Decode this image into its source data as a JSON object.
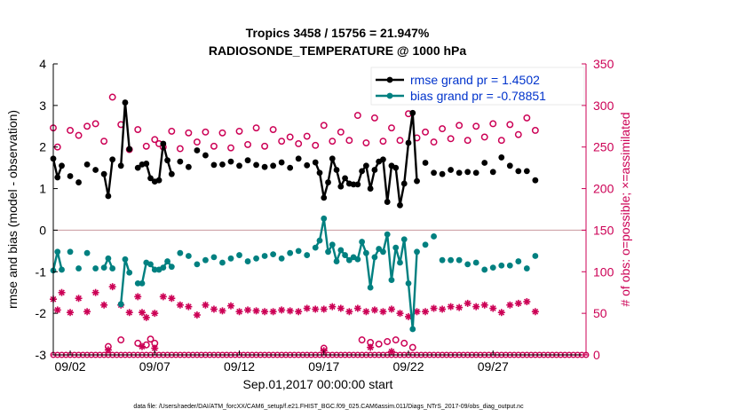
{
  "chart_data": {
    "type": "line",
    "title": "Tropics 3458 / 15756 = 21.947%",
    "subtitle": "RADIOSONDE_TEMPERATURE @ 1000 hPa",
    "xlabel": "Sep.01,2017 00:00:00 start",
    "ylabel_left": "rmse and bias (model - observation)",
    "ylabel_right": "# of obs: o=possible; ×=assimilated",
    "xlim": [
      1,
      32.5
    ],
    "ylim_left": [
      -3,
      4
    ],
    "ylim_right": [
      0,
      350
    ],
    "x_ticks": [
      2,
      7,
      12,
      17,
      22,
      27
    ],
    "x_tick_labels": [
      "09/02",
      "09/07",
      "09/12",
      "09/17",
      "09/22",
      "09/27"
    ],
    "y_left_ticks": [
      -3,
      -2,
      -1,
      0,
      1,
      2,
      3,
      4
    ],
    "y_right_ticks": [
      0,
      50,
      100,
      150,
      200,
      250,
      300,
      350
    ],
    "zero_line": 0,
    "colors": {
      "rmse": "#000000",
      "bias": "#008080",
      "obs": "#cc0055",
      "zero_line": "#cfa3a8",
      "legend_text": "#0033cc"
    },
    "series": [
      {
        "name": "rmse",
        "legend": "rmse grand pr = 1.4502",
        "values": [
          [
            1.0,
            1.72
          ],
          [
            1.25,
            1.27
          ],
          [
            1.5,
            1.55
          ],
          [
            2.0,
            1.3
          ],
          [
            2.5,
            1.15
          ],
          [
            3.0,
            1.58
          ],
          [
            3.5,
            1.45
          ],
          [
            4.0,
            1.35
          ],
          [
            4.25,
            0.82
          ],
          [
            4.5,
            1.7
          ],
          [
            5.0,
            1.55
          ],
          [
            5.25,
            3.07
          ],
          [
            5.5,
            1.95
          ],
          [
            6.0,
            1.5
          ],
          [
            6.25,
            1.58
          ],
          [
            6.5,
            1.6
          ],
          [
            6.75,
            1.25
          ],
          [
            7.0,
            1.17
          ],
          [
            7.25,
            1.2
          ],
          [
            7.5,
            2.08
          ],
          [
            7.75,
            1.68
          ],
          [
            8.0,
            1.35
          ],
          [
            8.5,
            1.65
          ],
          [
            9.0,
            1.52
          ],
          [
            9.5,
            1.92
          ],
          [
            10.0,
            1.8
          ],
          [
            10.5,
            1.57
          ],
          [
            11.0,
            1.58
          ],
          [
            11.5,
            1.65
          ],
          [
            12.0,
            1.55
          ],
          [
            12.5,
            1.68
          ],
          [
            13.0,
            1.57
          ],
          [
            13.5,
            1.52
          ],
          [
            14.0,
            1.55
          ],
          [
            14.5,
            1.63
          ],
          [
            15.0,
            1.5
          ],
          [
            15.5,
            1.72
          ],
          [
            16.0,
            1.56
          ],
          [
            16.5,
            1.63
          ],
          [
            16.75,
            1.38
          ],
          [
            17.0,
            0.78
          ],
          [
            17.25,
            1.15
          ],
          [
            17.5,
            1.72
          ],
          [
            17.75,
            1.45
          ],
          [
            18.0,
            1.05
          ],
          [
            18.25,
            1.25
          ],
          [
            18.5,
            1.12
          ],
          [
            18.75,
            1.1
          ],
          [
            19.0,
            1.1
          ],
          [
            19.25,
            1.42
          ],
          [
            19.5,
            1.55
          ],
          [
            19.75,
            1.0
          ],
          [
            20.0,
            1.45
          ],
          [
            20.25,
            1.65
          ],
          [
            20.5,
            1.7
          ],
          [
            20.75,
            0.68
          ],
          [
            21.0,
            1.55
          ],
          [
            21.25,
            1.5
          ],
          [
            21.5,
            0.6
          ],
          [
            21.75,
            1.12
          ],
          [
            22.0,
            2.1
          ],
          [
            22.25,
            2.82
          ],
          [
            22.5,
            1.18
          ],
          [
            23.0,
            1.62
          ],
          [
            23.5,
            1.38
          ],
          [
            24.0,
            1.35
          ],
          [
            24.5,
            1.45
          ],
          [
            25.0,
            1.38
          ],
          [
            25.5,
            1.4
          ],
          [
            26.0,
            1.38
          ],
          [
            26.5,
            1.62
          ],
          [
            27.0,
            1.4
          ],
          [
            27.5,
            1.75
          ],
          [
            28.0,
            1.55
          ],
          [
            28.5,
            1.42
          ],
          [
            29.0,
            1.42
          ],
          [
            29.5,
            1.2
          ]
        ]
      },
      {
        "name": "bias",
        "legend": "bias grand pr = -0.78851",
        "values": [
          [
            1.0,
            -0.97
          ],
          [
            1.25,
            -0.52
          ],
          [
            1.5,
            -0.95
          ],
          [
            2.0,
            -0.52
          ],
          [
            2.5,
            -0.92
          ],
          [
            3.0,
            -0.55
          ],
          [
            3.5,
            -0.92
          ],
          [
            4.0,
            -0.9
          ],
          [
            4.25,
            -0.68
          ],
          [
            4.5,
            -0.92
          ],
          [
            5.0,
            -1.78
          ],
          [
            5.25,
            -0.7
          ],
          [
            5.5,
            -1.02
          ],
          [
            6.0,
            -1.28
          ],
          [
            6.25,
            -1.28
          ],
          [
            6.5,
            -0.78
          ],
          [
            6.75,
            -0.82
          ],
          [
            7.0,
            -0.95
          ],
          [
            7.25,
            -0.95
          ],
          [
            7.5,
            -0.9
          ],
          [
            7.75,
            -0.75
          ],
          [
            8.0,
            -0.88
          ],
          [
            8.5,
            -0.55
          ],
          [
            9.0,
            -0.62
          ],
          [
            9.5,
            -0.82
          ],
          [
            10.0,
            -0.72
          ],
          [
            10.5,
            -0.65
          ],
          [
            11.0,
            -0.78
          ],
          [
            11.5,
            -0.68
          ],
          [
            12.0,
            -0.6
          ],
          [
            12.5,
            -0.75
          ],
          [
            13.0,
            -0.68
          ],
          [
            13.5,
            -0.62
          ],
          [
            14.0,
            -0.58
          ],
          [
            14.5,
            -0.68
          ],
          [
            15.0,
            -0.55
          ],
          [
            15.5,
            -0.5
          ],
          [
            16.0,
            -0.6
          ],
          [
            16.5,
            -0.42
          ],
          [
            16.75,
            -0.25
          ],
          [
            17.0,
            0.28
          ],
          [
            17.25,
            -0.52
          ],
          [
            17.5,
            -0.35
          ],
          [
            17.75,
            -0.75
          ],
          [
            18.0,
            -0.48
          ],
          [
            18.25,
            -0.6
          ],
          [
            18.5,
            -0.72
          ],
          [
            18.75,
            -0.65
          ],
          [
            19.0,
            -0.7
          ],
          [
            19.25,
            -0.28
          ],
          [
            19.5,
            -0.55
          ],
          [
            19.75,
            -1.38
          ],
          [
            20.0,
            -0.65
          ],
          [
            20.25,
            -0.45
          ],
          [
            20.5,
            -0.52
          ],
          [
            20.75,
            -0.1
          ],
          [
            21.0,
            -1.2
          ],
          [
            21.25,
            -0.42
          ],
          [
            21.5,
            -0.78
          ],
          [
            21.75,
            -0.22
          ],
          [
            22.0,
            -1.28
          ],
          [
            22.25,
            -2.38
          ],
          [
            22.5,
            -0.52
          ],
          [
            23.0,
            -0.35
          ],
          [
            23.5,
            -0.15
          ],
          [
            24.0,
            -0.72
          ],
          [
            24.5,
            -0.72
          ],
          [
            25.0,
            -0.72
          ],
          [
            25.5,
            -0.82
          ],
          [
            26.0,
            -0.78
          ],
          [
            26.5,
            -0.95
          ],
          [
            27.0,
            -0.9
          ],
          [
            27.5,
            -0.85
          ],
          [
            28.0,
            -0.85
          ],
          [
            28.5,
            -0.75
          ],
          [
            29.0,
            -0.92
          ],
          [
            29.5,
            -0.62
          ]
        ]
      },
      {
        "name": "obs_possible",
        "legend": "",
        "axis": "right",
        "values": [
          [
            1.0,
            273
          ],
          [
            1.25,
            250
          ],
          [
            2.0,
            270
          ],
          [
            2.5,
            264
          ],
          [
            3.0,
            275
          ],
          [
            3.5,
            278
          ],
          [
            4.0,
            257
          ],
          [
            4.5,
            310
          ],
          [
            5.0,
            277
          ],
          [
            5.5,
            247
          ],
          [
            6.0,
            271
          ],
          [
            6.5,
            251
          ],
          [
            7.0,
            259
          ],
          [
            7.25,
            254
          ],
          [
            7.5,
            250
          ],
          [
            8.0,
            269
          ],
          [
            8.5,
            248
          ],
          [
            9.0,
            267
          ],
          [
            9.5,
            256
          ],
          [
            10.0,
            268
          ],
          [
            10.5,
            251
          ],
          [
            11.0,
            267
          ],
          [
            11.5,
            249
          ],
          [
            12.0,
            269
          ],
          [
            12.5,
            253
          ],
          [
            13.0,
            273
          ],
          [
            13.5,
            251
          ],
          [
            14.0,
            271
          ],
          [
            14.5,
            257
          ],
          [
            15.0,
            262
          ],
          [
            15.5,
            254
          ],
          [
            16.0,
            263
          ],
          [
            16.5,
            252
          ],
          [
            17.0,
            276
          ],
          [
            17.5,
            257
          ],
          [
            18.0,
            268
          ],
          [
            18.5,
            258
          ],
          [
            19.0,
            288
          ],
          [
            19.5,
            255
          ],
          [
            20.0,
            285
          ],
          [
            20.5,
            257
          ],
          [
            21.0,
            273
          ],
          [
            21.5,
            258
          ],
          [
            22.0,
            290
          ],
          [
            22.5,
            261
          ],
          [
            23.0,
            268
          ],
          [
            23.5,
            256
          ],
          [
            24.0,
            272
          ],
          [
            24.5,
            260
          ],
          [
            25.0,
            276
          ],
          [
            25.5,
            258
          ],
          [
            26.0,
            275
          ],
          [
            26.5,
            262
          ],
          [
            27.0,
            278
          ],
          [
            27.5,
            258
          ],
          [
            28.0,
            277
          ],
          [
            28.5,
            265
          ],
          [
            29.0,
            285
          ],
          [
            29.5,
            270
          ]
        ]
      },
      {
        "name": "obs_assimilated",
        "legend": "",
        "axis": "right",
        "values": [
          [
            1.0,
            67
          ],
          [
            1.25,
            54
          ],
          [
            1.5,
            75
          ],
          [
            2.0,
            51
          ],
          [
            2.5,
            68
          ],
          [
            3.0,
            52
          ],
          [
            3.5,
            75
          ],
          [
            4.0,
            60
          ],
          [
            4.5,
            82
          ],
          [
            5.0,
            60
          ],
          [
            5.5,
            51
          ],
          [
            6.0,
            70
          ],
          [
            6.25,
            51
          ],
          [
            6.5,
            45
          ],
          [
            7.0,
            50
          ],
          [
            7.5,
            70
          ],
          [
            8.0,
            68
          ],
          [
            8.5,
            60
          ],
          [
            9.0,
            58
          ],
          [
            9.5,
            48
          ],
          [
            10.0,
            60
          ],
          [
            10.5,
            55
          ],
          [
            11.0,
            53
          ],
          [
            11.5,
            59
          ],
          [
            12.0,
            52
          ],
          [
            12.5,
            54
          ],
          [
            13.0,
            53
          ],
          [
            13.5,
            52
          ],
          [
            14.0,
            52
          ],
          [
            14.5,
            54
          ],
          [
            15.0,
            53
          ],
          [
            15.5,
            52
          ],
          [
            16.0,
            56
          ],
          [
            16.5,
            55
          ],
          [
            17.0,
            55
          ],
          [
            17.5,
            58
          ],
          [
            18.0,
            56
          ],
          [
            18.5,
            52
          ],
          [
            19.0,
            56
          ],
          [
            19.5,
            52
          ],
          [
            20.0,
            54
          ],
          [
            20.5,
            52
          ],
          [
            21.0,
            55
          ],
          [
            21.5,
            50
          ],
          [
            22.0,
            46
          ],
          [
            22.5,
            52
          ],
          [
            23.0,
            52
          ],
          [
            23.5,
            56
          ],
          [
            24.0,
            55
          ],
          [
            24.5,
            58
          ],
          [
            25.0,
            57
          ],
          [
            25.5,
            62
          ],
          [
            26.0,
            58
          ],
          [
            26.5,
            60
          ],
          [
            27.0,
            56
          ],
          [
            27.5,
            51
          ],
          [
            28.0,
            60
          ],
          [
            28.5,
            62
          ],
          [
            29.0,
            64
          ],
          [
            29.5,
            52
          ]
        ]
      },
      {
        "name": "obs_possible_low",
        "legend": "",
        "axis": "right",
        "values": [
          [
            4.25,
            10
          ],
          [
            5.0,
            18
          ],
          [
            6.0,
            14
          ],
          [
            6.5,
            12
          ],
          [
            6.75,
            19
          ],
          [
            7.0,
            14
          ],
          [
            17.0,
            8
          ],
          [
            19.25,
            18
          ],
          [
            19.75,
            15
          ],
          [
            20.25,
            13
          ],
          [
            20.75,
            16
          ],
          [
            21.25,
            18
          ],
          [
            21.75,
            14
          ],
          [
            22.25,
            9
          ]
        ]
      },
      {
        "name": "obs_assimilated_low",
        "legend": "",
        "axis": "right",
        "values": [
          [
            4.25,
            6
          ],
          [
            6.25,
            10
          ],
          [
            7.0,
            8
          ],
          [
            17.0,
            5
          ],
          [
            19.75,
            9
          ],
          [
            21.0,
            4
          ]
        ]
      }
    ]
  },
  "footer": "data file: /Users/raeder/DAI/ATM_forcXX/CAM6_setup/f.e21.FHIST_BGC.f09_025.CAM6assim.011/Diags_NTrS_2017-09/obs_diag_output.nc"
}
